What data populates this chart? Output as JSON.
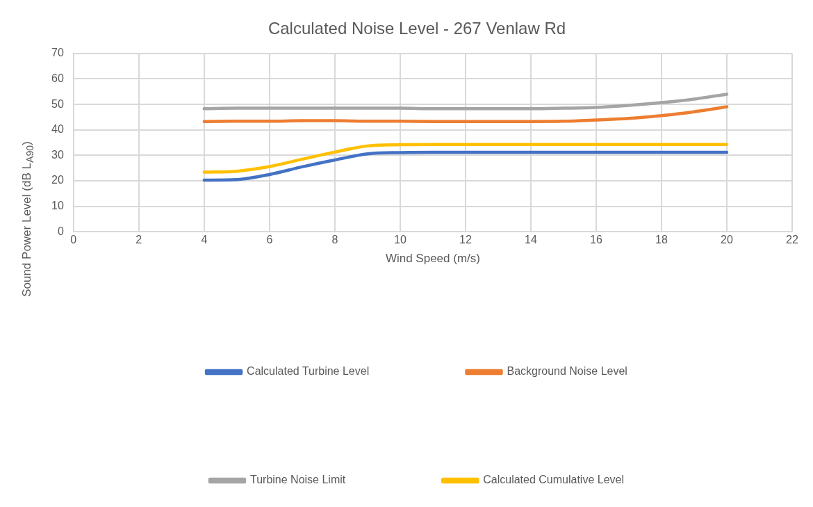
{
  "chart_data": {
    "type": "line",
    "title": "Calculated Noise Level - 267 Venlaw Rd",
    "xlabel": "Wind Speed (m/s)",
    "ylabel": "Sound Power Level (dB L$_{A90}$)",
    "x": [
      4,
      5,
      6,
      7,
      8,
      9,
      10,
      11,
      12,
      13,
      14,
      15,
      16,
      17,
      18,
      19,
      20
    ],
    "series": [
      {
        "name": "Calculated Turbine Level",
        "color": "#4472c4",
        "values": [
          20.3,
          20.5,
          22.5,
          25.5,
          28.2,
          30.6,
          31.1,
          31.2,
          31.2,
          31.2,
          31.2,
          31.2,
          31.2,
          31.2,
          31.2,
          31.2,
          31.2
        ]
      },
      {
        "name": "Background Noise Level",
        "color": "#ed7d31",
        "values": [
          43.3,
          43.4,
          43.4,
          43.6,
          43.6,
          43.4,
          43.4,
          43.3,
          43.3,
          43.3,
          43.3,
          43.4,
          43.9,
          44.5,
          45.6,
          47.1,
          49.1
        ]
      },
      {
        "name": "Turbine Noise Limit",
        "color": "#a5a5a5",
        "values": [
          48.3,
          48.5,
          48.5,
          48.5,
          48.5,
          48.5,
          48.5,
          48.3,
          48.3,
          48.3,
          48.3,
          48.5,
          48.8,
          49.6,
          50.7,
          52.1,
          54.0
        ]
      },
      {
        "name": "Calculated Cumulative Level",
        "color": "#ffc000",
        "values": [
          23.4,
          23.8,
          25.6,
          28.5,
          31.3,
          33.7,
          34.2,
          34.3,
          34.3,
          34.3,
          34.3,
          34.3,
          34.3,
          34.3,
          34.3,
          34.3,
          34.3
        ]
      }
    ],
    "xlim": [
      0,
      22
    ],
    "xticks": [
      0,
      2,
      4,
      6,
      8,
      10,
      12,
      14,
      16,
      18,
      20,
      22
    ],
    "ylim": [
      0,
      70
    ],
    "yticks": [
      0,
      10,
      20,
      30,
      40,
      50,
      60,
      70
    ],
    "grid": true,
    "legend": "bottom",
    "marker": "none",
    "line_style": "solid"
  }
}
